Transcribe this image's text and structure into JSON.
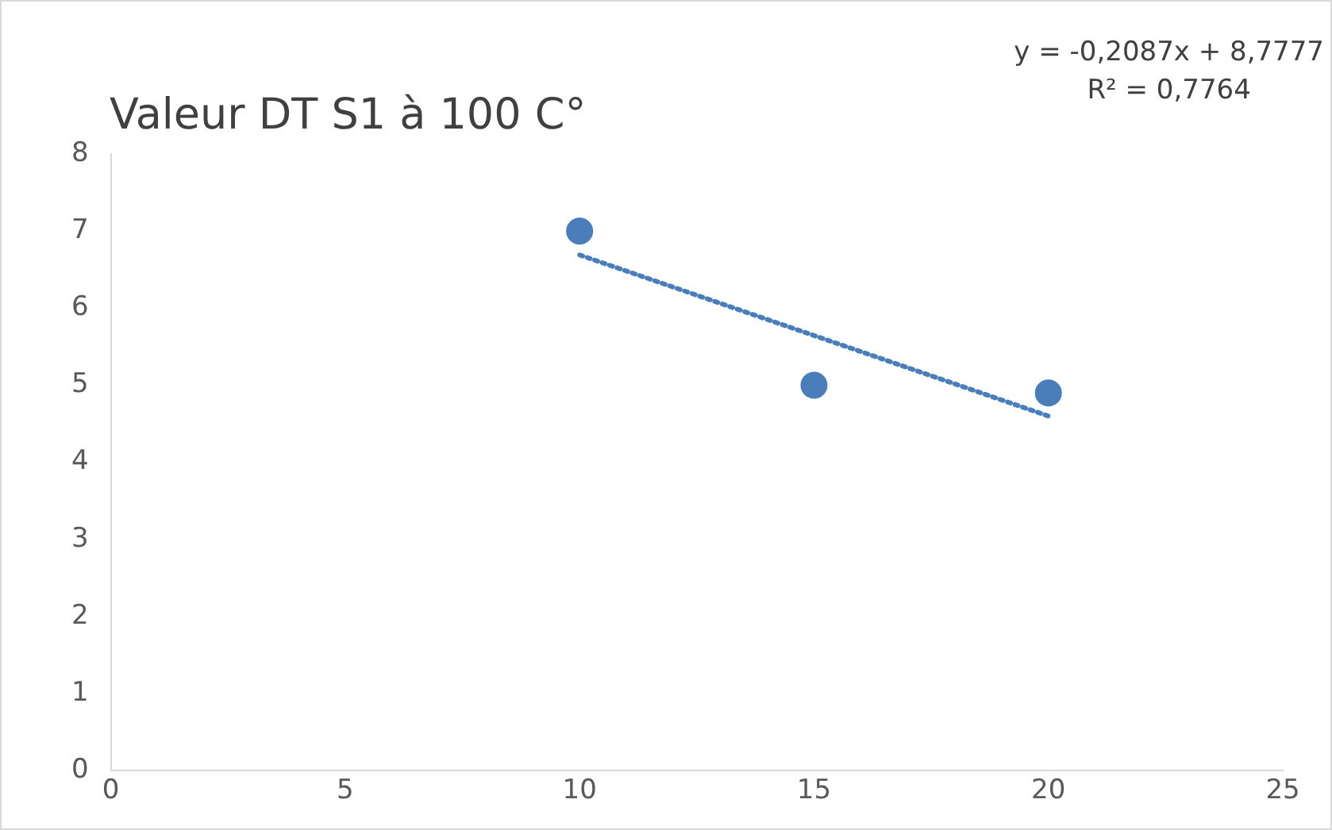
{
  "chart_data": {
    "type": "scatter",
    "title": "Valeur DT S1 à 100 C°",
    "series": [
      {
        "type": "scatter",
        "color": "#4a7ebb",
        "x": [
          10,
          15,
          20
        ],
        "values": [
          7,
          5,
          4.9
        ],
        "marker": "circle"
      },
      {
        "type": "line",
        "color": "#4a7ebb",
        "x": [
          10,
          20
        ],
        "values": [
          6.69,
          4.6
        ],
        "line_style": "dotted",
        "marker": "none"
      }
    ],
    "xlim": [
      0,
      25
    ],
    "xticks": [
      0,
      5,
      10,
      15,
      20,
      25
    ],
    "ylim": [
      0,
      8
    ],
    "yticks": [
      0,
      1,
      2,
      3,
      4,
      5,
      6,
      7,
      8
    ],
    "grid": false,
    "legend": false,
    "annotations": [
      "y = -0,2087x + 8,7777",
      "R² = 0,7764"
    ]
  }
}
